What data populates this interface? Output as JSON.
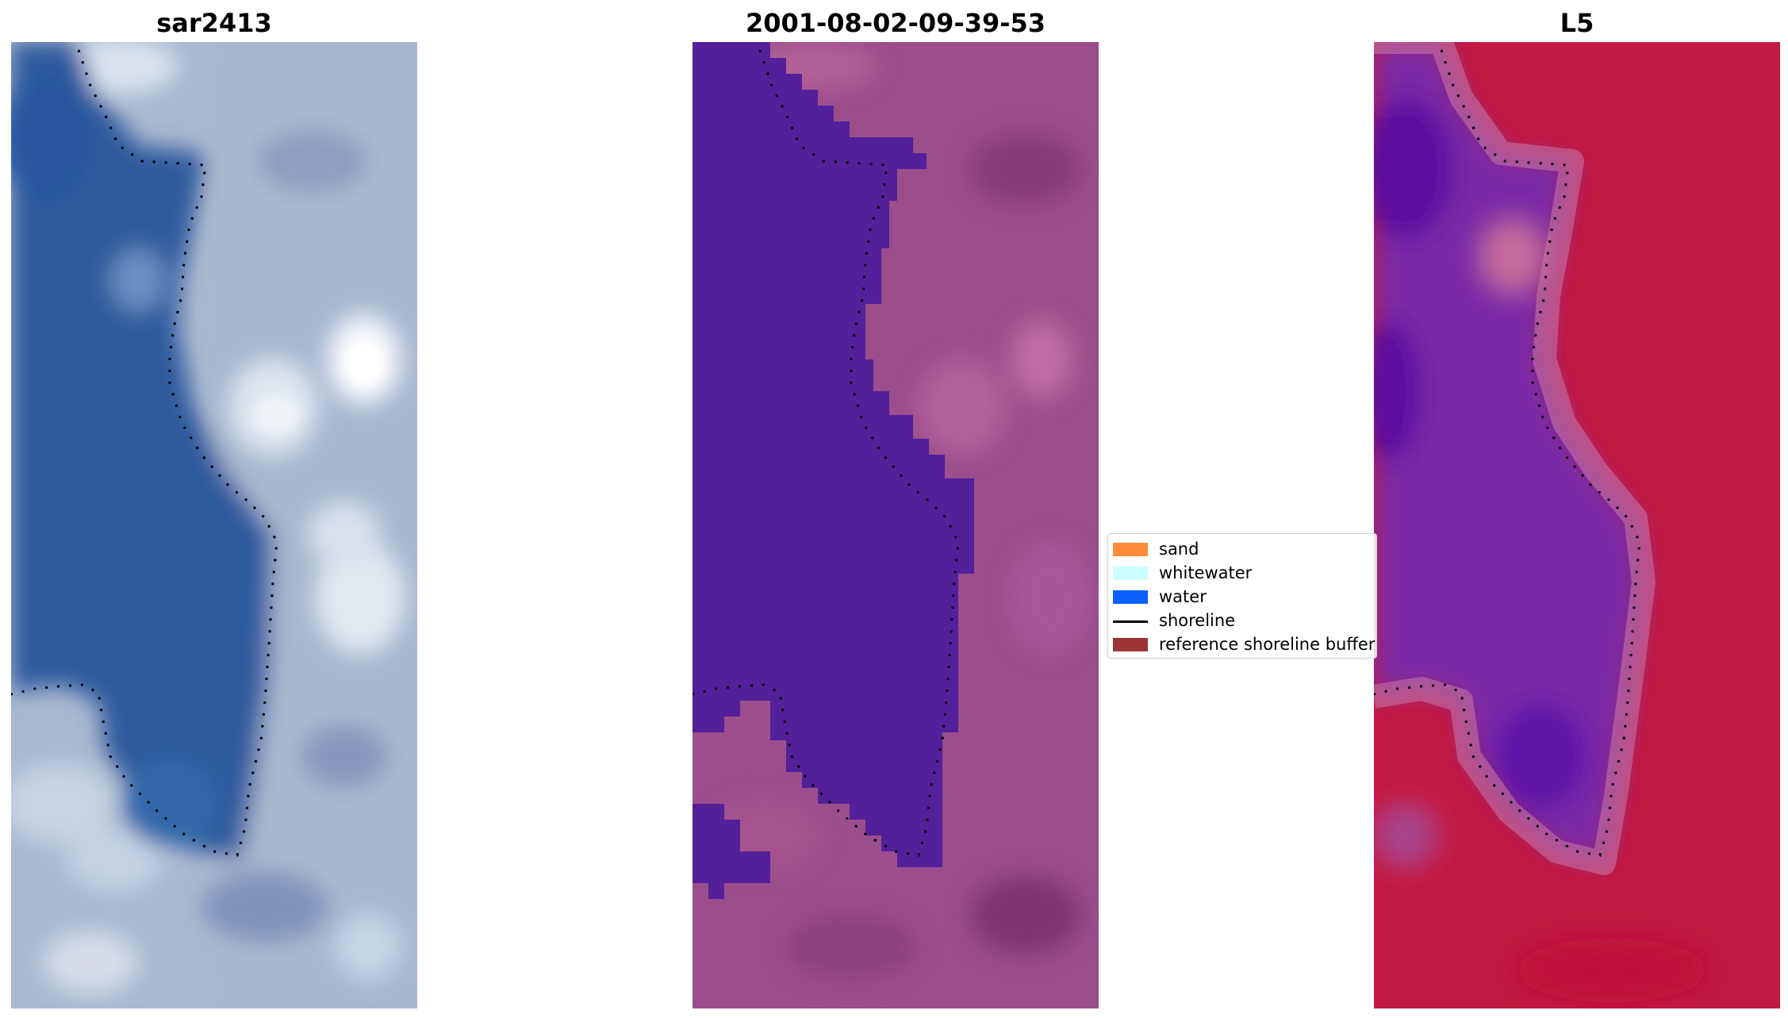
{
  "panels": [
    {
      "title": "sar2413"
    },
    {
      "title": "2001-08-02-09-39-53"
    },
    {
      "title": "L5"
    }
  ],
  "legend": {
    "items": [
      {
        "label": "sand",
        "color": "#ff8c3a",
        "kind": "patch"
      },
      {
        "label": "whitewater",
        "color": "#ccffff",
        "kind": "patch"
      },
      {
        "label": "water",
        "color": "#0a5fff",
        "kind": "patch"
      },
      {
        "label": "shoreline",
        "color": "#000000",
        "kind": "line"
      },
      {
        "label": "reference shoreline buffer",
        "color": "#9b3434",
        "kind": "patch"
      }
    ]
  },
  "colors": {
    "panel1_water": "#2a5aa0",
    "panel1_land": "#a9bbd3",
    "panel2_water": "#53209a",
    "panel2_land": "#9c4f8e",
    "panel3_water": "#6a1fa8",
    "panel3_land": "#c21a44"
  }
}
